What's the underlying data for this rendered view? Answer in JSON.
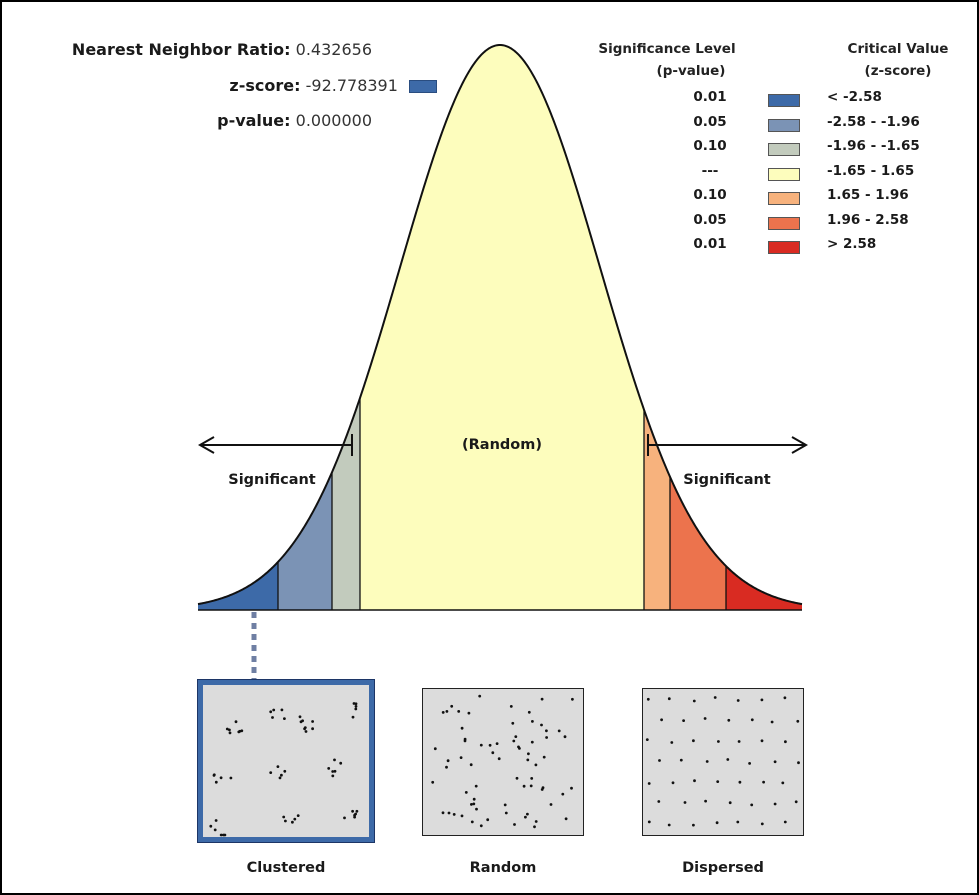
{
  "stats": {
    "nnr_label": "Nearest Neighbor Ratio:",
    "nnr_value": "0.432656",
    "z_label": "z-score:",
    "z_value": "-92.778391",
    "p_label": "p-value:",
    "p_value": "0.000000"
  },
  "legend": {
    "sig_header_1": "Significance Level",
    "sig_header_2": "(p-value)",
    "crit_header_1": "Critical Value",
    "crit_header_2": "(z-score)",
    "rows": [
      {
        "p": "0.01",
        "z": "< -2.58",
        "color": "#3d6aa8"
      },
      {
        "p": "0.05",
        "z": "-2.58 - -1.96",
        "color": "#7b93b5"
      },
      {
        "p": "0.10",
        "z": "-1.96 - -1.65",
        "color": "#c2cbbd"
      },
      {
        "p": "---",
        "z": "-1.65 - 1.65",
        "color": "#fdfdbd"
      },
      {
        "p": "0.10",
        "z": "1.65 - 1.96",
        "color": "#f7b27d"
      },
      {
        "p": "0.05",
        "z": "1.96 - 2.58",
        "color": "#ec734d"
      },
      {
        "p": "0.01",
        "z": "> 2.58",
        "color": "#d92b22"
      }
    ]
  },
  "curve": {
    "labels": {
      "significant_left": "Significant",
      "random_center": "(Random)",
      "significant_right": "Significant"
    },
    "zscore_indicator_color": "#3d6aa8"
  },
  "panels": [
    {
      "label": "Clustered",
      "pattern": "clustered",
      "selected": true
    },
    {
      "label": "Random",
      "pattern": "random",
      "selected": false
    },
    {
      "label": "Dispersed",
      "pattern": "dispersed",
      "selected": false
    }
  ]
}
